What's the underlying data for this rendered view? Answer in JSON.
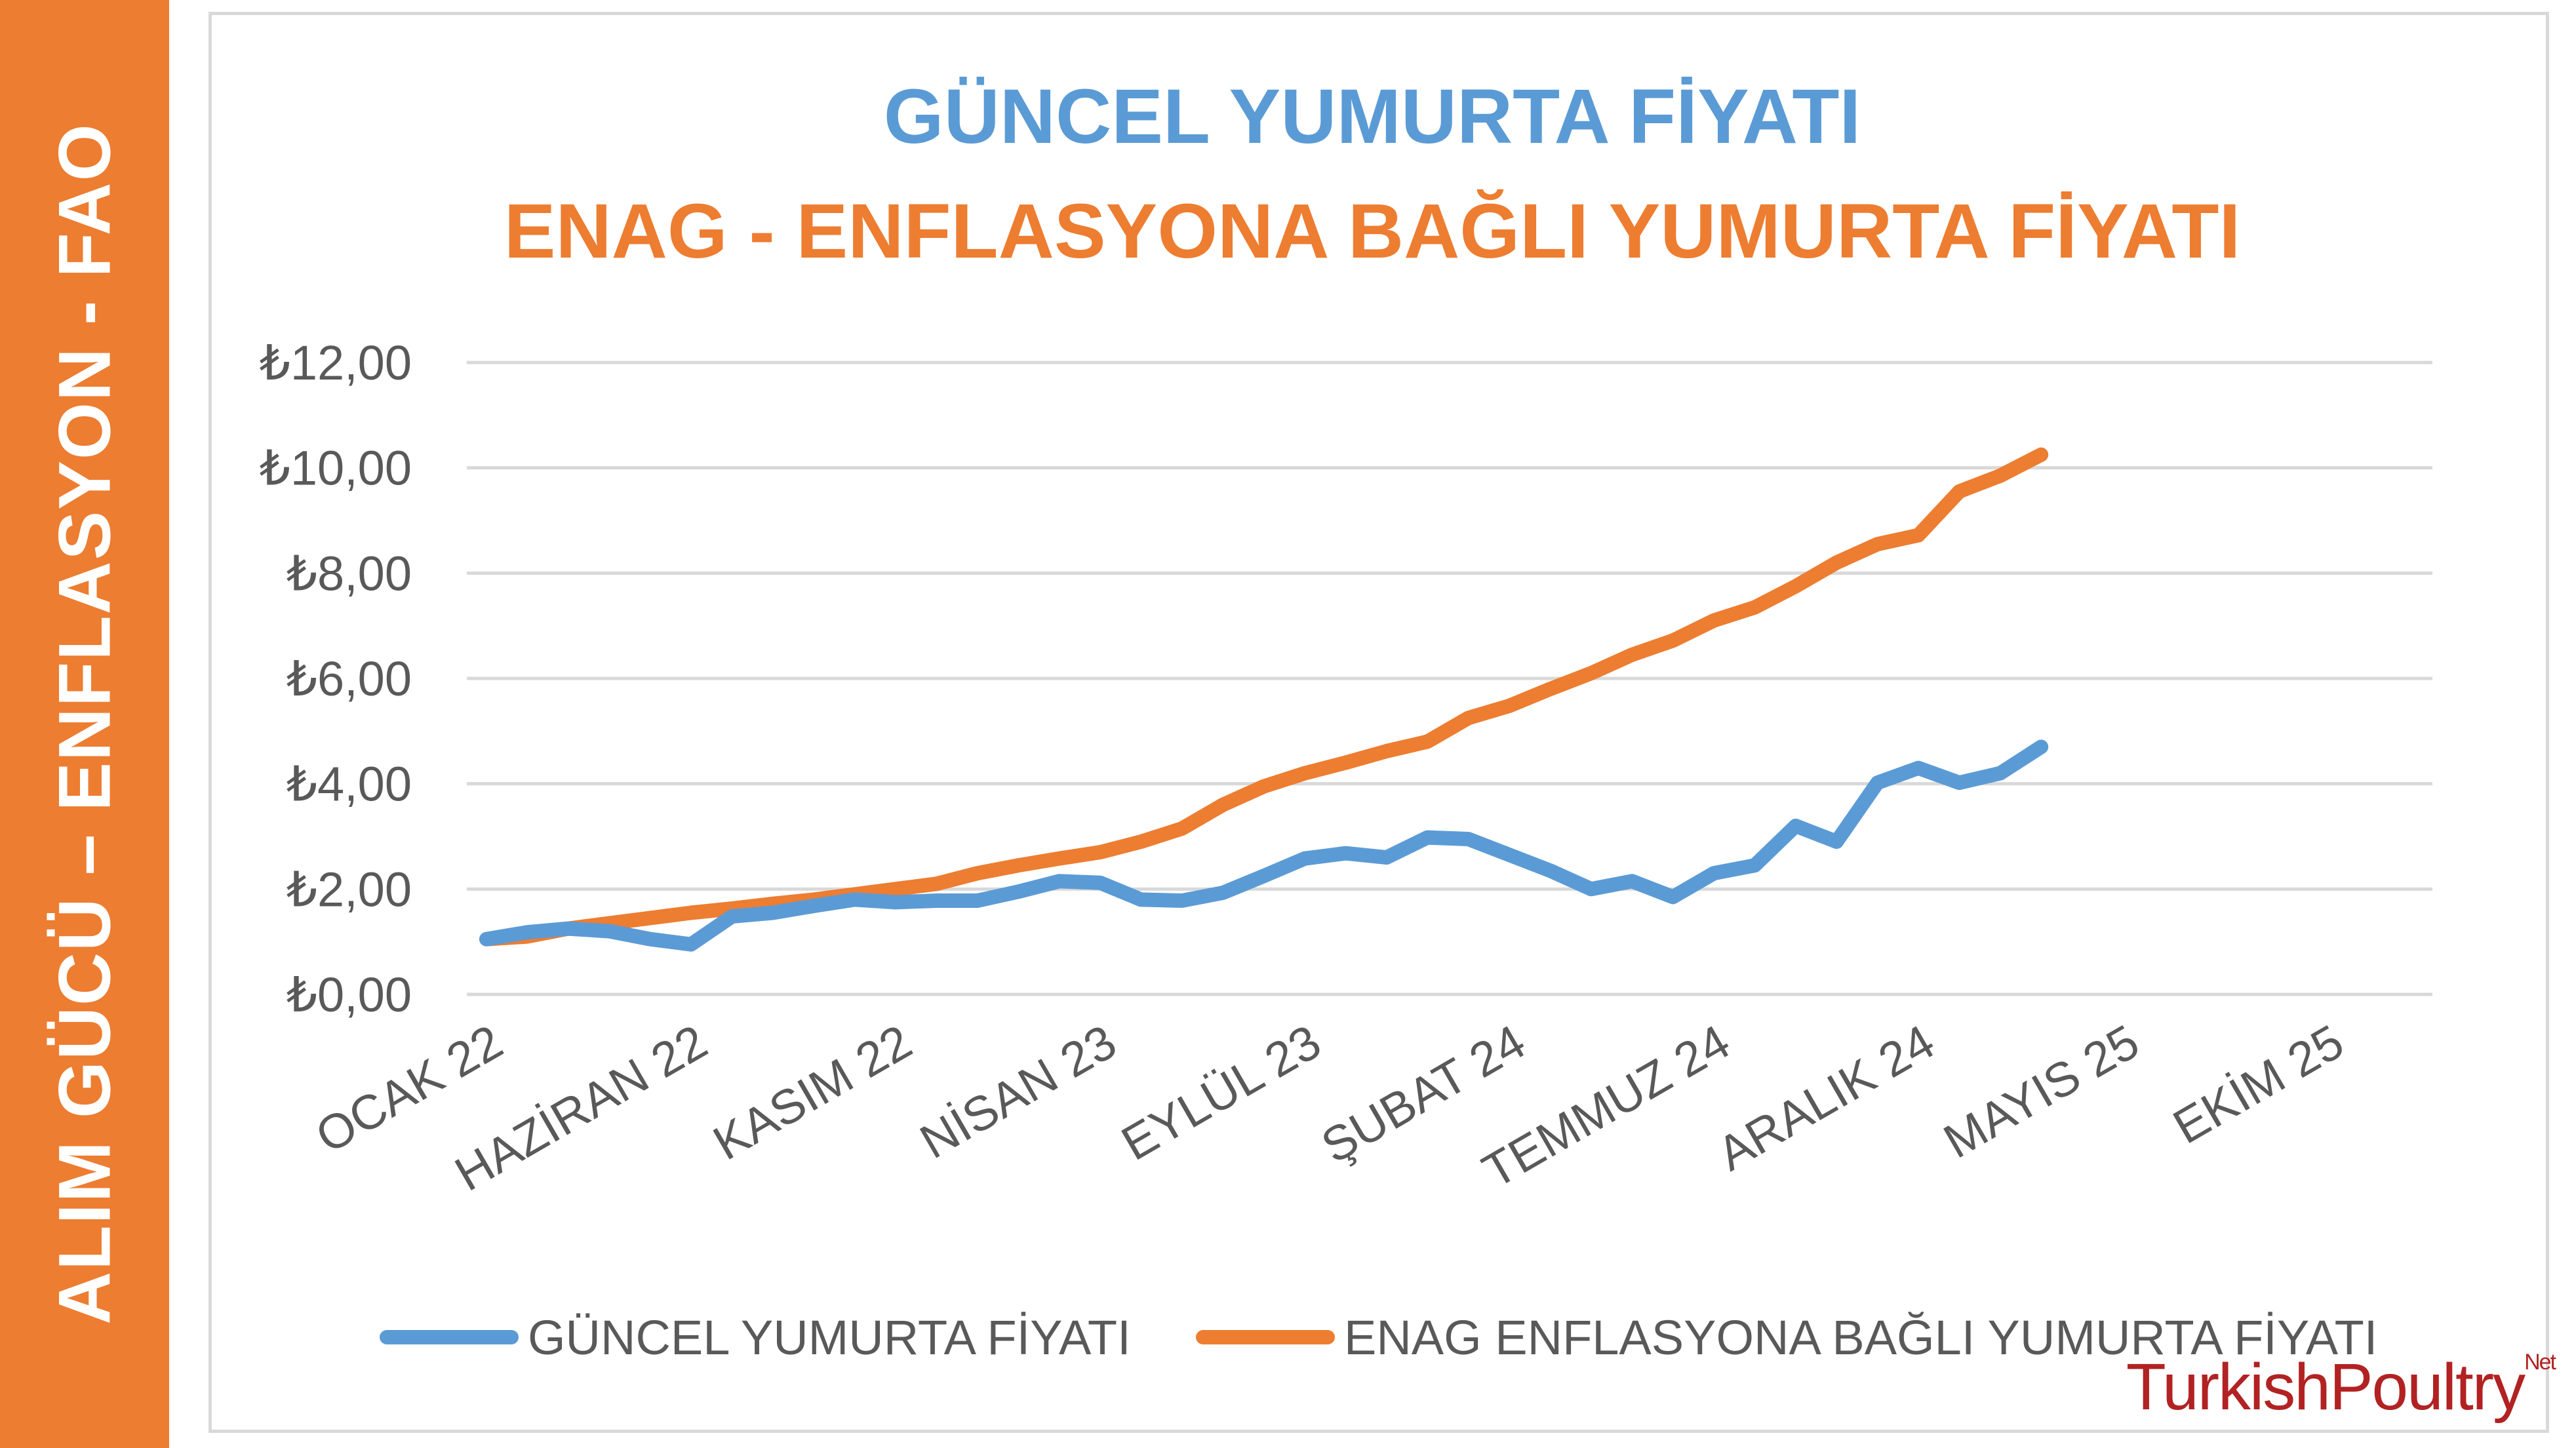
{
  "side_banner": {
    "text": "ALIM GÜCÜ – ENFLASYON - FAO",
    "color": "#ED7D31"
  },
  "logo": {
    "text": "TurkishPoultry",
    "suffix": "Net"
  },
  "chart_data": {
    "type": "line",
    "title": "GÜNCEL YUMURTA FİYATI",
    "subtitle": "ENAG - ENFLASYONA BAĞLI YUMURTA FİYATI",
    "xlabel": "",
    "ylabel": "",
    "ylim": [
      0,
      12
    ],
    "y_ticks": [
      "₺0,00",
      "₺2,00",
      "₺4,00",
      "₺6,00",
      "₺8,00",
      "₺10,00",
      "₺12,00"
    ],
    "x_tick_labels": [
      "OCAK 22",
      "HAZİRAN 22",
      "KASIM 22",
      "NİSAN 23",
      "EYLÜL 23",
      "ŞUBAT 24",
      "TEMMUZ 24",
      "ARALIK 24",
      "MAYIS 25",
      "EKİM 25"
    ],
    "x_categories_count": 50,
    "x_tick_interval": 5,
    "grid": true,
    "legend_position": "bottom",
    "series": [
      {
        "name": "GÜNCEL YUMURTA FİYATI",
        "color": "#5B9BD5",
        "values": [
          1.05,
          1.18,
          1.25,
          1.2,
          1.05,
          0.95,
          1.48,
          1.55,
          1.68,
          1.8,
          1.75,
          1.78,
          1.78,
          1.95,
          2.15,
          2.12,
          1.8,
          1.78,
          1.93,
          2.25,
          2.58,
          2.68,
          2.6,
          2.98,
          2.95,
          2.65,
          2.35,
          2.0,
          2.15,
          1.85,
          2.3,
          2.45,
          3.2,
          2.9,
          4.02,
          4.3,
          4.02,
          4.2,
          4.7
        ]
      },
      {
        "name": "ENAG ENFLASYONA BAĞLI YUMURTA FİYATI",
        "color": "#ED7D31",
        "values": [
          1.05,
          1.1,
          1.25,
          1.35,
          1.45,
          1.55,
          1.63,
          1.72,
          1.8,
          1.9,
          2.0,
          2.1,
          2.3,
          2.45,
          2.58,
          2.7,
          2.9,
          3.15,
          3.6,
          3.95,
          4.2,
          4.4,
          4.62,
          4.8,
          5.25,
          5.48,
          5.8,
          6.1,
          6.45,
          6.72,
          7.1,
          7.35,
          7.75,
          8.2,
          8.55,
          8.72,
          9.55,
          9.85,
          10.25
        ]
      }
    ]
  }
}
